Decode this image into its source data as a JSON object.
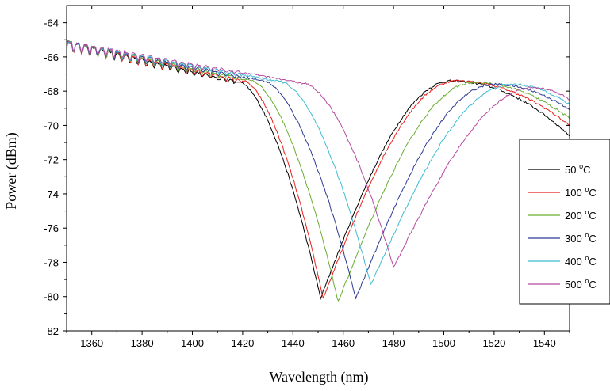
{
  "chart_data": {
    "type": "line",
    "xlabel": "Wavelength (nm)",
    "ylabel": "Power (dBm)",
    "xlim": [
      1350,
      1550
    ],
    "ylim": [
      -82,
      -63
    ],
    "xticks": [
      1360,
      1380,
      1400,
      1420,
      1440,
      1460,
      1480,
      1500,
      1520,
      1540
    ],
    "yticks": [
      -82,
      -80,
      -78,
      -76,
      -74,
      -72,
      -70,
      -68,
      -66,
      -64
    ],
    "xtick_labels": [
      "1360",
      "1380",
      "1400",
      "1420",
      "1440",
      "1460",
      "1480",
      "1500",
      "1520",
      "1540"
    ],
    "ytick_labels": [
      "-82",
      "-80",
      "-78",
      "-76",
      "-74",
      "-72",
      "-70",
      "-68",
      "-66",
      "-64"
    ],
    "legend_position": "right",
    "series": [
      {
        "name": "50",
        "unit": "oC",
        "label_prefix": " ",
        "color": "#000000",
        "dip_x": 1451,
        "dip_y": -80.1,
        "right_peak_x": 1503,
        "right_peak_y": -67.4,
        "end_y": -70.6,
        "knee_x": 1418
      },
      {
        "name": "100",
        "unit": "oC",
        "label_prefix": "",
        "color": "#e8201c",
        "dip_x": 1452,
        "dip_y": -80.1,
        "right_peak_x": 1505,
        "right_peak_y": -67.4,
        "end_y": -70.0,
        "knee_x": 1420
      },
      {
        "name": "200",
        "unit": "oC",
        "label_prefix": "",
        "color": "#6aae32",
        "dip_x": 1458,
        "dip_y": -80.3,
        "right_peak_x": 1512,
        "right_peak_y": -67.5,
        "end_y": -69.6,
        "knee_x": 1423
      },
      {
        "name": "300",
        "unit": "oC",
        "label_prefix": "",
        "color": "#2c3a92",
        "dip_x": 1465,
        "dip_y": -80.1,
        "right_peak_x": 1520,
        "right_peak_y": -67.6,
        "end_y": -69.1,
        "knee_x": 1428
      },
      {
        "name": "400",
        "unit": "oC",
        "label_prefix": "",
        "color": "#3fbcd2",
        "dip_x": 1471,
        "dip_y": -79.3,
        "right_peak_x": 1527,
        "right_peak_y": -67.6,
        "end_y": -68.8,
        "knee_x": 1435
      },
      {
        "name": "500",
        "unit": "oC",
        "label_prefix": "",
        "color": "#b54aa0",
        "dip_x": 1480,
        "dip_y": -78.3,
        "right_peak_x": 1536,
        "right_peak_y": -67.8,
        "end_y": -68.5,
        "knee_x": 1444
      }
    ]
  }
}
